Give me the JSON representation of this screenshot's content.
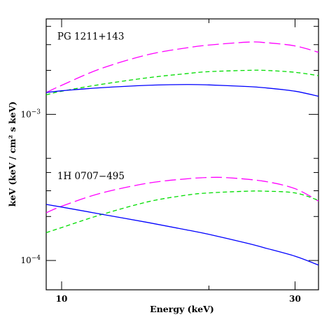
{
  "chart_data": {
    "type": "line",
    "title": "",
    "xlabel": "Energy (keV)",
    "ylabel": "keV (keV / cm² s keV)",
    "xscale": "log",
    "yscale": "log",
    "xlim": [
      9.3,
      33.5
    ],
    "ylim": [
      6.3e-05,
      0.0045
    ],
    "grid": false,
    "x_ticks": [
      {
        "value": 10,
        "label": "10"
      },
      {
        "value": 30,
        "label": "30"
      }
    ],
    "y_ticks": [
      {
        "value": 0.001,
        "base": "10",
        "exp": "−3"
      },
      {
        "value": 0.0001,
        "base": "10",
        "exp": "−4"
      }
    ],
    "x_minor_ticks": [
      20
    ],
    "y_minor_ticks": [
      0.0002,
      0.0003,
      0.0004,
      0.0005,
      0.002,
      0.003,
      0.004
    ],
    "annotations": [
      {
        "text": "PG 1211+143",
        "x": 9.8,
        "y": 0.00325
      },
      {
        "text": "1H 0707−495",
        "x": 9.8,
        "y": 0.00036
      }
    ],
    "series": [
      {
        "group": "PG 1211+143",
        "color": "#ff00ff",
        "style": "long-dash",
        "x": [
          9.3,
          10,
          12,
          15,
          18,
          20,
          24,
          26,
          30,
          33.5
        ],
        "y": [
          0.00141,
          0.00158,
          0.00205,
          0.00256,
          0.00285,
          0.00298,
          0.00312,
          0.0031,
          0.00294,
          0.00266
        ]
      },
      {
        "group": "PG 1211+143",
        "color": "#00dd00",
        "style": "short-dash",
        "x": [
          9.3,
          10,
          12,
          15,
          18,
          20,
          24,
          26,
          30,
          33.5
        ],
        "y": [
          0.00136,
          0.00144,
          0.0016,
          0.00178,
          0.0019,
          0.00196,
          0.002,
          0.002,
          0.00194,
          0.00184
        ]
      },
      {
        "group": "PG 1211+143",
        "color": "#0000ff",
        "style": "solid",
        "x": [
          9.3,
          10,
          12,
          15,
          18,
          20,
          24,
          26,
          30,
          33.5
        ],
        "y": [
          0.00141,
          0.00145,
          0.00152,
          0.00158,
          0.0016,
          0.00159,
          0.00155,
          0.00152,
          0.00144,
          0.00133
        ]
      },
      {
        "group": "1H 0707−495",
        "color": "#ff00ff",
        "style": "long-dash",
        "x": [
          9.3,
          10,
          12,
          15,
          18,
          20,
          22,
          26,
          30,
          33.5
        ],
        "y": [
          0.000212,
          0.000235,
          0.000288,
          0.000338,
          0.000362,
          0.00037,
          0.000368,
          0.000348,
          0.00031,
          0.000255
        ]
      },
      {
        "group": "1H 0707−495",
        "color": "#00dd00",
        "style": "short-dash",
        "x": [
          9.3,
          10,
          12,
          15,
          18,
          20,
          24,
          26,
          30,
          33.5
        ],
        "y": [
          0.000155,
          0.000168,
          0.000205,
          0.000252,
          0.00028,
          0.00029,
          0.000298,
          0.000298,
          0.00029,
          0.000258
        ]
      },
      {
        "group": "1H 0707−495",
        "color": "#0000ff",
        "style": "solid",
        "x": [
          9.3,
          10,
          12,
          15,
          18,
          20,
          24,
          26,
          30,
          33.5
        ],
        "y": [
          0.000242,
          0.000232,
          0.000208,
          0.000182,
          0.000162,
          0.000151,
          0.000131,
          0.000122,
          0.000107,
          9.3e-05
        ]
      }
    ]
  }
}
